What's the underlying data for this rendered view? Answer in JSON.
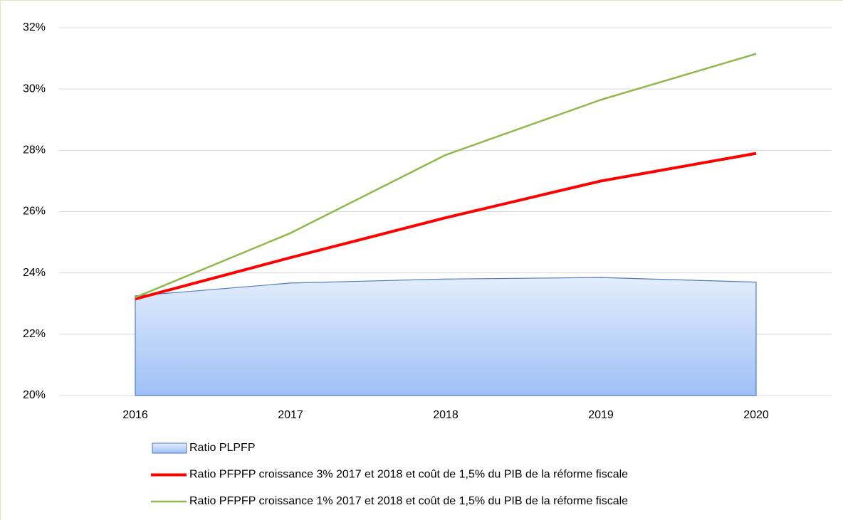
{
  "chart_data": {
    "type": "line",
    "categories": [
      "2016",
      "2017",
      "2018",
      "2019",
      "2020"
    ],
    "ylim": [
      20,
      32
    ],
    "yticks": [
      {
        "value": 20,
        "label": "20%"
      },
      {
        "value": 22,
        "label": "22%"
      },
      {
        "value": 24,
        "label": "24%"
      },
      {
        "value": 26,
        "label": "26%"
      },
      {
        "value": 28,
        "label": "28%"
      },
      {
        "value": 30,
        "label": "30%"
      },
      {
        "value": 32,
        "label": "32%"
      }
    ],
    "grid": true,
    "legend": "bottom",
    "series": [
      {
        "name": "Ratio PLPFP",
        "type": "area",
        "color": "#4f7bbf",
        "values": [
          23.25,
          23.67,
          23.8,
          23.85,
          23.7
        ]
      },
      {
        "name": "Ratio PFPFP croissance 3% 2017 et 2018 et coût de 1,5% du PIB de la réforme fiscale",
        "type": "line",
        "color": "#ff0000",
        "values": [
          23.15,
          24.5,
          25.8,
          27.0,
          27.9
        ]
      },
      {
        "name": "Ratio PFPFP croissance 1% 2017 et 2018 et coût de 1,5% du PIB de la réforme fiscale",
        "type": "line",
        "color": "#8fb84b",
        "values": [
          23.2,
          25.3,
          27.85,
          29.65,
          31.15
        ]
      }
    ]
  }
}
